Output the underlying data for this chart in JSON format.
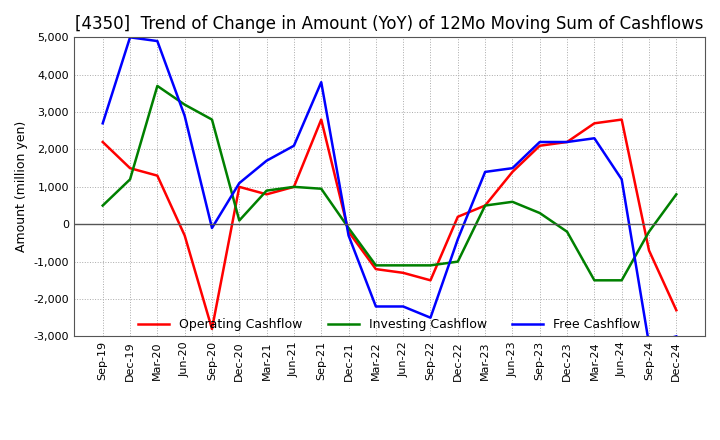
{
  "title": "[4350]  Trend of Change in Amount (YoY) of 12Mo Moving Sum of Cashflows",
  "ylabel": "Amount (million yen)",
  "ylim": [
    -3000,
    5000
  ],
  "yticks": [
    -3000,
    -2000,
    -1000,
    0,
    1000,
    2000,
    3000,
    4000,
    5000
  ],
  "background_color": "#ffffff",
  "plot_bg_color": "#ffffff",
  "grid_color": "#aaaaaa",
  "zero_line_color": "#555555",
  "x_labels": [
    "Sep-19",
    "Dec-19",
    "Mar-20",
    "Jun-20",
    "Sep-20",
    "Dec-20",
    "Mar-21",
    "Jun-21",
    "Sep-21",
    "Dec-21",
    "Mar-22",
    "Jun-22",
    "Sep-22",
    "Dec-22",
    "Mar-23",
    "Jun-23",
    "Sep-23",
    "Dec-23",
    "Mar-24",
    "Jun-24",
    "Sep-24",
    "Dec-24"
  ],
  "operating": [
    2200,
    1500,
    1300,
    -300,
    -2800,
    1000,
    800,
    1000,
    2800,
    -200,
    -1200,
    -1300,
    -1500,
    200,
    500,
    1400,
    2100,
    2200,
    2700,
    2800,
    -700,
    -2300
  ],
  "investing": [
    500,
    1200,
    3700,
    3200,
    2800,
    100,
    900,
    1000,
    950,
    -100,
    -1100,
    -1100,
    -1100,
    -1000,
    500,
    600,
    300,
    -200,
    -1500,
    -1500,
    -200,
    800
  ],
  "free": [
    2700,
    5000,
    4900,
    2900,
    -100,
    1100,
    1700,
    2100,
    3800,
    -300,
    -2200,
    -2200,
    -2500,
    -400,
    1400,
    1500,
    2200,
    2200,
    2300,
    1200,
    -3200,
    -3000
  ],
  "operating_color": "#ff0000",
  "investing_color": "#008000",
  "free_color": "#0000ff",
  "line_width": 1.8,
  "title_fontsize": 12,
  "label_fontsize": 9,
  "tick_fontsize": 8,
  "legend_fontsize": 9
}
